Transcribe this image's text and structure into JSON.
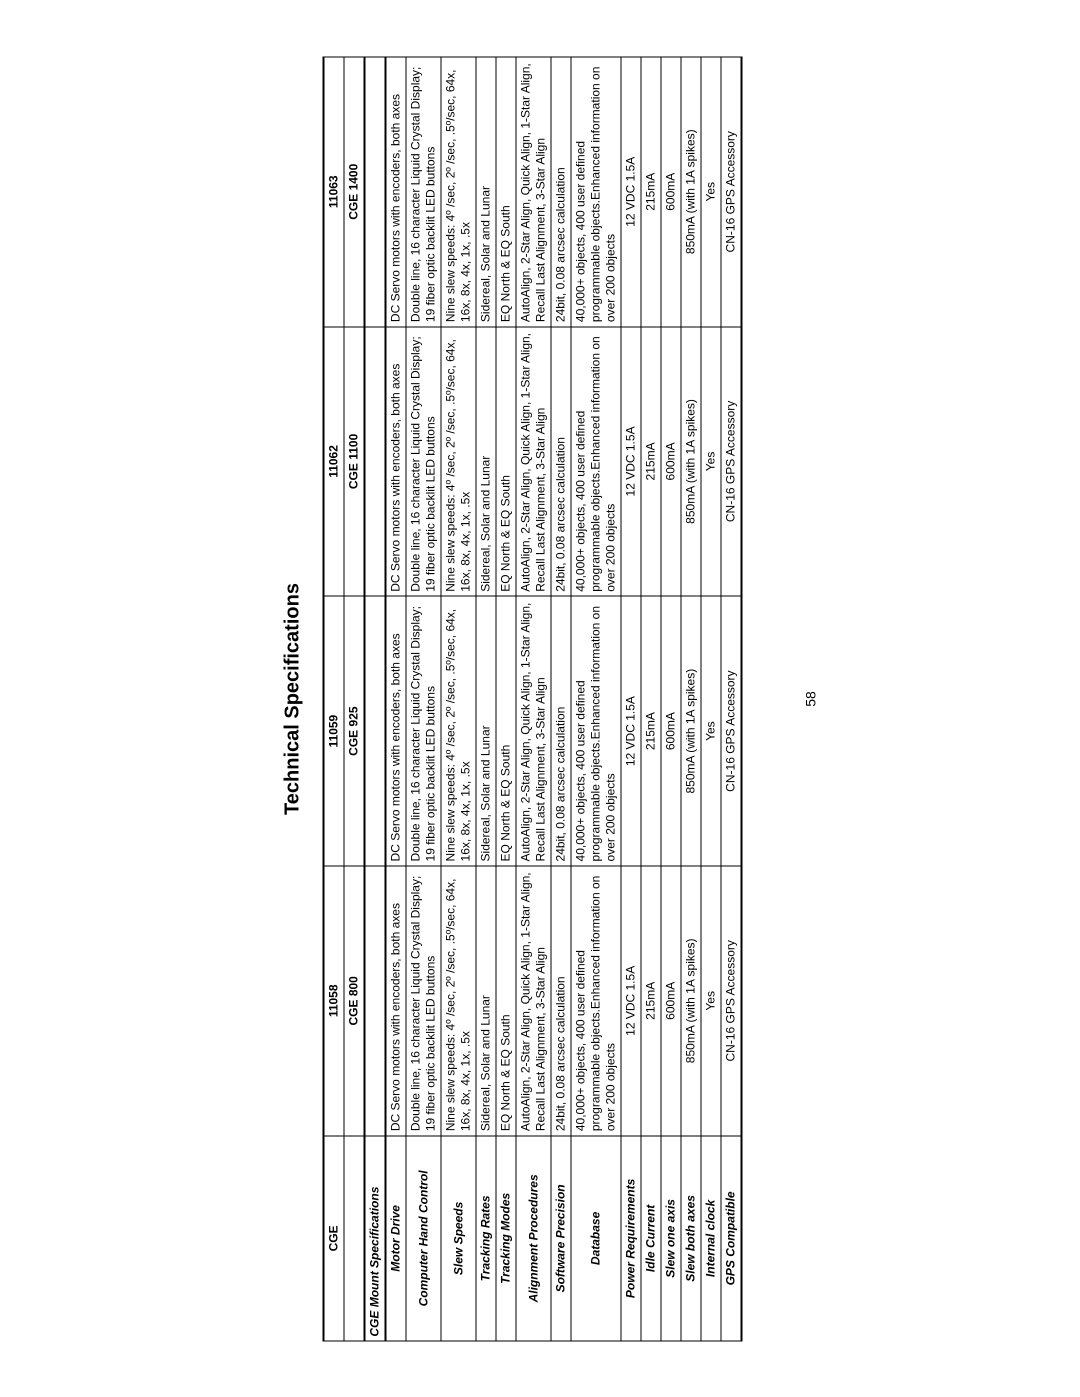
{
  "title": "Technical Specifications",
  "page_number": "58",
  "columns": {
    "cge": "CGE",
    "c1": "11058",
    "c2": "11059",
    "c3": "11062",
    "c4": "11063"
  },
  "models": {
    "c1": "CGE 800",
    "c2": "CGE 925",
    "c3": "CGE 1100",
    "c4": "CGE 1400"
  },
  "section_header": "CGE Mount Specifications",
  "rows": {
    "motor_drive": {
      "label": "Motor Drive",
      "c1": "DC Servo motors with encoders, both axes",
      "c2": "DC Servo motors with encoders, both axes",
      "c3": "DC Servo motors with encoders, both axes",
      "c4": "DC Servo motors with encoders, both axes"
    },
    "computer_hand_control": {
      "label": "Computer Hand Control",
      "c1": "Double line, 16 character Liquid Crystal Display; 19 fiber optic backlit LED buttons",
      "c2": "Double line, 16 character Liquid Crystal Display; 19 fiber optic backlit LED buttons",
      "c3": "Double line, 16 character Liquid Crystal Display; 19 fiber optic backlit LED buttons",
      "c4": "Double line, 16 character Liquid Crystal Display; 19 fiber optic backlit LED buttons"
    },
    "slew_speeds": {
      "label": "Slew Speeds",
      "c1": "Nine slew speeds: 4º /sec, 2º /sec, .5º/sec, 64x, 16x, 8x, 4x, 1x, .5x",
      "c2": "Nine slew speeds: 4º /sec, 2º /sec, .5º/sec, 64x, 16x, 8x, 4x, 1x, .5x",
      "c3": "Nine slew speeds: 4º /sec, 2º /sec, .5º/sec, 64x, 16x, 8x, 4x, 1x, .5x",
      "c4": "Nine slew speeds: 4º /sec, 2º /sec, .5º/sec, 64x, 16x, 8x, 4x, 1x, .5x"
    },
    "tracking_rates": {
      "label": "Tracking Rates",
      "c1": "Sidereal, Solar and  Lunar",
      "c2": "Sidereal, Solar and  Lunar",
      "c3": "Sidereal, Solar and  Lunar",
      "c4": "Sidereal, Solar and  Lunar"
    },
    "tracking_modes": {
      "label": "Tracking Modes",
      "c1": "EQ North & EQ South",
      "c2": "EQ North & EQ South",
      "c3": "EQ North & EQ South",
      "c4": "EQ North & EQ South"
    },
    "alignment_procedures": {
      "label": "Alignment Procedures",
      "c1": "AutoAlign, 2-Star Align, Quick Align, 1-Star Align, Recall Last Alignment, 3-Star Align",
      "c2": "AutoAlign, 2-Star Align, Quick Align, 1-Star Align, Recall Last Alignment, 3-Star Align",
      "c3": "AutoAlign, 2-Star Align, Quick Align, 1-Star Align, Recall Last Alignment, 3-Star Align",
      "c4": "AutoAlign, 2-Star Align, Quick Align, 1-Star Align, Recall Last Alignment, 3-Star Align"
    },
    "software_precision": {
      "label": "Software Precision",
      "c1": "24bit, 0.08 arcsec calculation",
      "c2": "24bit, 0.08 arcsec calculation",
      "c3": "24bit, 0.08 arcsec calculation",
      "c4": "24bit, 0.08 arcsec calculation"
    },
    "database": {
      "label": "Database",
      "c1": "40,000+ objects, 400 user defined programmable objects.Enhanced information on over 200 objects",
      "c2": "40,000+ objects, 400 user defined programmable objects.Enhanced information on over 200 objects",
      "c3": "40,000+ objects, 400 user defined programmable objects.Enhanced information on over 200 objects",
      "c4": "40,000+ objects, 400 user defined programmable objects.Enhanced information on over 200 objects"
    },
    "power_requirements": {
      "label": "Power Requirements",
      "c1": "12 VDC 1.5A",
      "c2": "12 VDC 1.5A",
      "c3": "12 VDC 1.5A",
      "c4": "12 VDC 1.5A"
    },
    "idle_current": {
      "label": "Idle Current",
      "c1": "215mA",
      "c2": "215mA",
      "c3": "215mA",
      "c4": "215mA"
    },
    "slew_one_axis": {
      "label": "Slew one axis",
      "c1": "600mA",
      "c2": "600mA",
      "c3": "600mA",
      "c4": "600mA"
    },
    "slew_both_axes": {
      "label": "Slew both axes",
      "c1": "850mA (with 1A spikes)",
      "c2": "850mA (with 1A spikes)",
      "c3": "850mA (with 1A spikes)",
      "c4": "850mA (with 1A spikes)"
    },
    "internal_clock": {
      "label": "Internal clock",
      "c1": "Yes",
      "c2": "Yes",
      "c3": "Yes",
      "c4": "Yes"
    },
    "gps_compatible": {
      "label": "GPS Compatible",
      "c1": "CN-16 GPS Accessory",
      "c2": "CN-16 GPS Accessory",
      "c3": "CN-16 GPS Accessory",
      "c4": "CN-16 GPS Accessory"
    }
  }
}
